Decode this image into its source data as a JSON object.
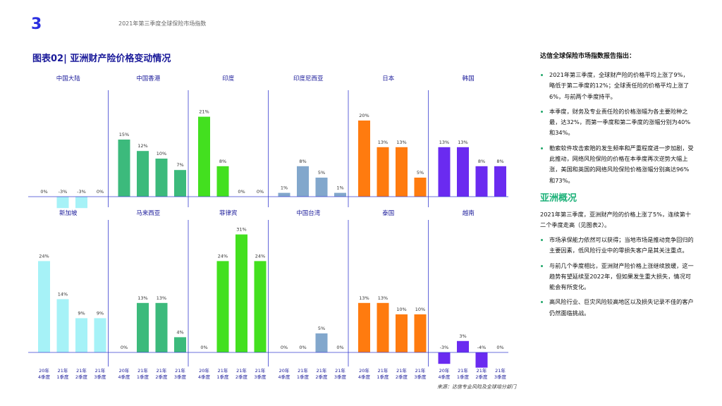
{
  "page": {
    "number": "3",
    "header_title": "2021年第三季度全球保险市场指数"
  },
  "chart_title": "图表02|  亚洲财产险价格变动情况",
  "source_note": "来源：达信专业风险及全球培分部门",
  "colors": {
    "accent": "#2a2fe0",
    "title": "#1a1a9a",
    "axis": "#3a3fd0",
    "section_green": "#1fb27a"
  },
  "chart_data": {
    "type": "bar",
    "categories": [
      "20年 4季度",
      "21年 1季度",
      "21年 2季度",
      "21年 3季度"
    ],
    "category_lines": [
      [
        "20年",
        "4季度"
      ],
      [
        "21年",
        "1季度"
      ],
      [
        "21年",
        "2季度"
      ],
      [
        "21年",
        "3季度"
      ]
    ],
    "unit": "%",
    "panels": [
      {
        "name": "中国大陆",
        "values": [
          0,
          -3,
          -3,
          0
        ],
        "color": "#a6f2f7"
      },
      {
        "name": "中国香港",
        "values": [
          15,
          12,
          10,
          7
        ],
        "color": "#3cba7c"
      },
      {
        "name": "印度",
        "values": [
          21,
          8,
          0,
          0
        ],
        "color": "#43e01f"
      },
      {
        "name": "印度尼西亚",
        "values": [
          1,
          8,
          5,
          1
        ],
        "color": "#82a7cc"
      },
      {
        "name": "日本",
        "values": [
          20,
          13,
          13,
          5
        ],
        "color": "#ff7b0f"
      },
      {
        "name": "韩国",
        "values": [
          13,
          13,
          8,
          8
        ],
        "color": "#6a2bf0"
      },
      {
        "name": "新加坡",
        "values": [
          24,
          14,
          9,
          9
        ],
        "color": "#a6f2f7"
      },
      {
        "name": "马来西亚",
        "values": [
          0,
          13,
          13,
          4
        ],
        "color": "#3cba7c"
      },
      {
        "name": "菲律宾",
        "values": [
          0,
          24,
          31,
          24
        ],
        "color": "#43e01f"
      },
      {
        "name": "中国台湾",
        "values": [
          0,
          0,
          5,
          0
        ],
        "color": "#82a7cc"
      },
      {
        "name": "泰国",
        "values": [
          13,
          13,
          10,
          10
        ],
        "color": "#ff7b0f"
      },
      {
        "name": "越南",
        "values": [
          -3,
          3,
          -4,
          0
        ],
        "color": "#6a2bf0"
      }
    ]
  },
  "sidebar": {
    "heading": "达信全球保险市场指数报告指出：",
    "bullets": [
      "2021年第三季度，全球财产险的价格平均上涨了9%，略低于第二季度的12%；全球责任险的价格平均上涨了6%，与前两个季度持平。",
      "本季度，财务及专业责任险的价格涨幅为各主要险种之最，达32%，而第一季度和第二季度的涨幅分别为40%和34%。",
      "勒索软件攻击索赔的发生频率和严重程度进一步加剧，受此推动，网络风险保险的价格在本季度再次逆势大幅上涨，美国和英国的网络风险保险价格涨幅分别高达96%和73%。"
    ],
    "section_title": "亚洲概况",
    "paragraph": "2021年第三季度，亚洲财产险的价格上涨了5%，连续第十二个季度走高（见图表2）。",
    "bullets2": [
      "市场承保能力依然可以获得；当地市场是推动竞争回归的主要因素，低风险行业中的零损失客户是其关注重点。",
      "与前几个季度相比，亚洲财产险价格上涨继续放缓，这一趋势有望延续至2022年，但如果发生重大损失，情况可能会有所变化。",
      "高风险行业、巨灾风险较高地区以及损失记录不佳的客户仍然面临挑战。"
    ]
  }
}
